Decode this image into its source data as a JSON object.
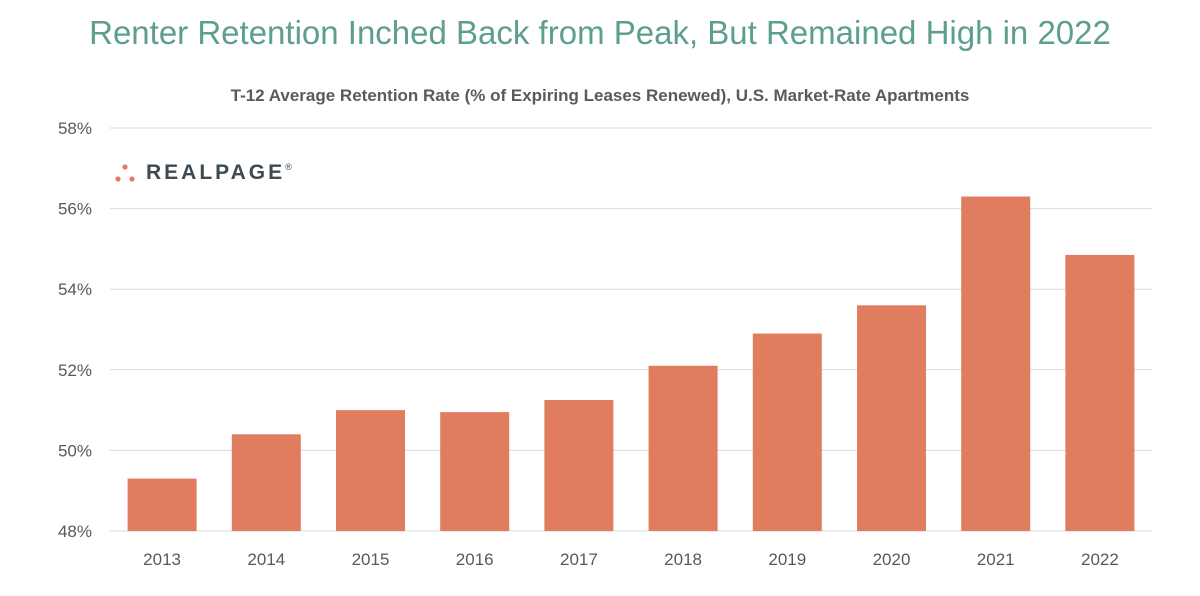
{
  "title": "Renter Retention Inched Back from Peak, But Remained High in 2022",
  "subtitle": "T-12 Average Retention Rate (% of Expiring Leases Renewed), U.S. Market-Rate Apartments",
  "logo": {
    "text": "REALPAGE",
    "registered": "®"
  },
  "colors": {
    "bar": "#e07d5e",
    "title": "#5c9e8f",
    "grid": "#d9d9d9",
    "logo_dots": "#e07d5e"
  },
  "chart_data": {
    "type": "bar",
    "categories": [
      "2013",
      "2014",
      "2015",
      "2016",
      "2017",
      "2018",
      "2019",
      "2020",
      "2021",
      "2022"
    ],
    "values": [
      49.3,
      50.4,
      51.0,
      50.95,
      51.25,
      52.1,
      52.9,
      53.6,
      56.3,
      54.85
    ],
    "ylim": [
      48,
      58
    ],
    "yticks": [
      48,
      50,
      52,
      54,
      56,
      58
    ],
    "ytick_labels": [
      "48%",
      "50%",
      "52%",
      "54%",
      "56%",
      "58%"
    ],
    "grid": true
  }
}
